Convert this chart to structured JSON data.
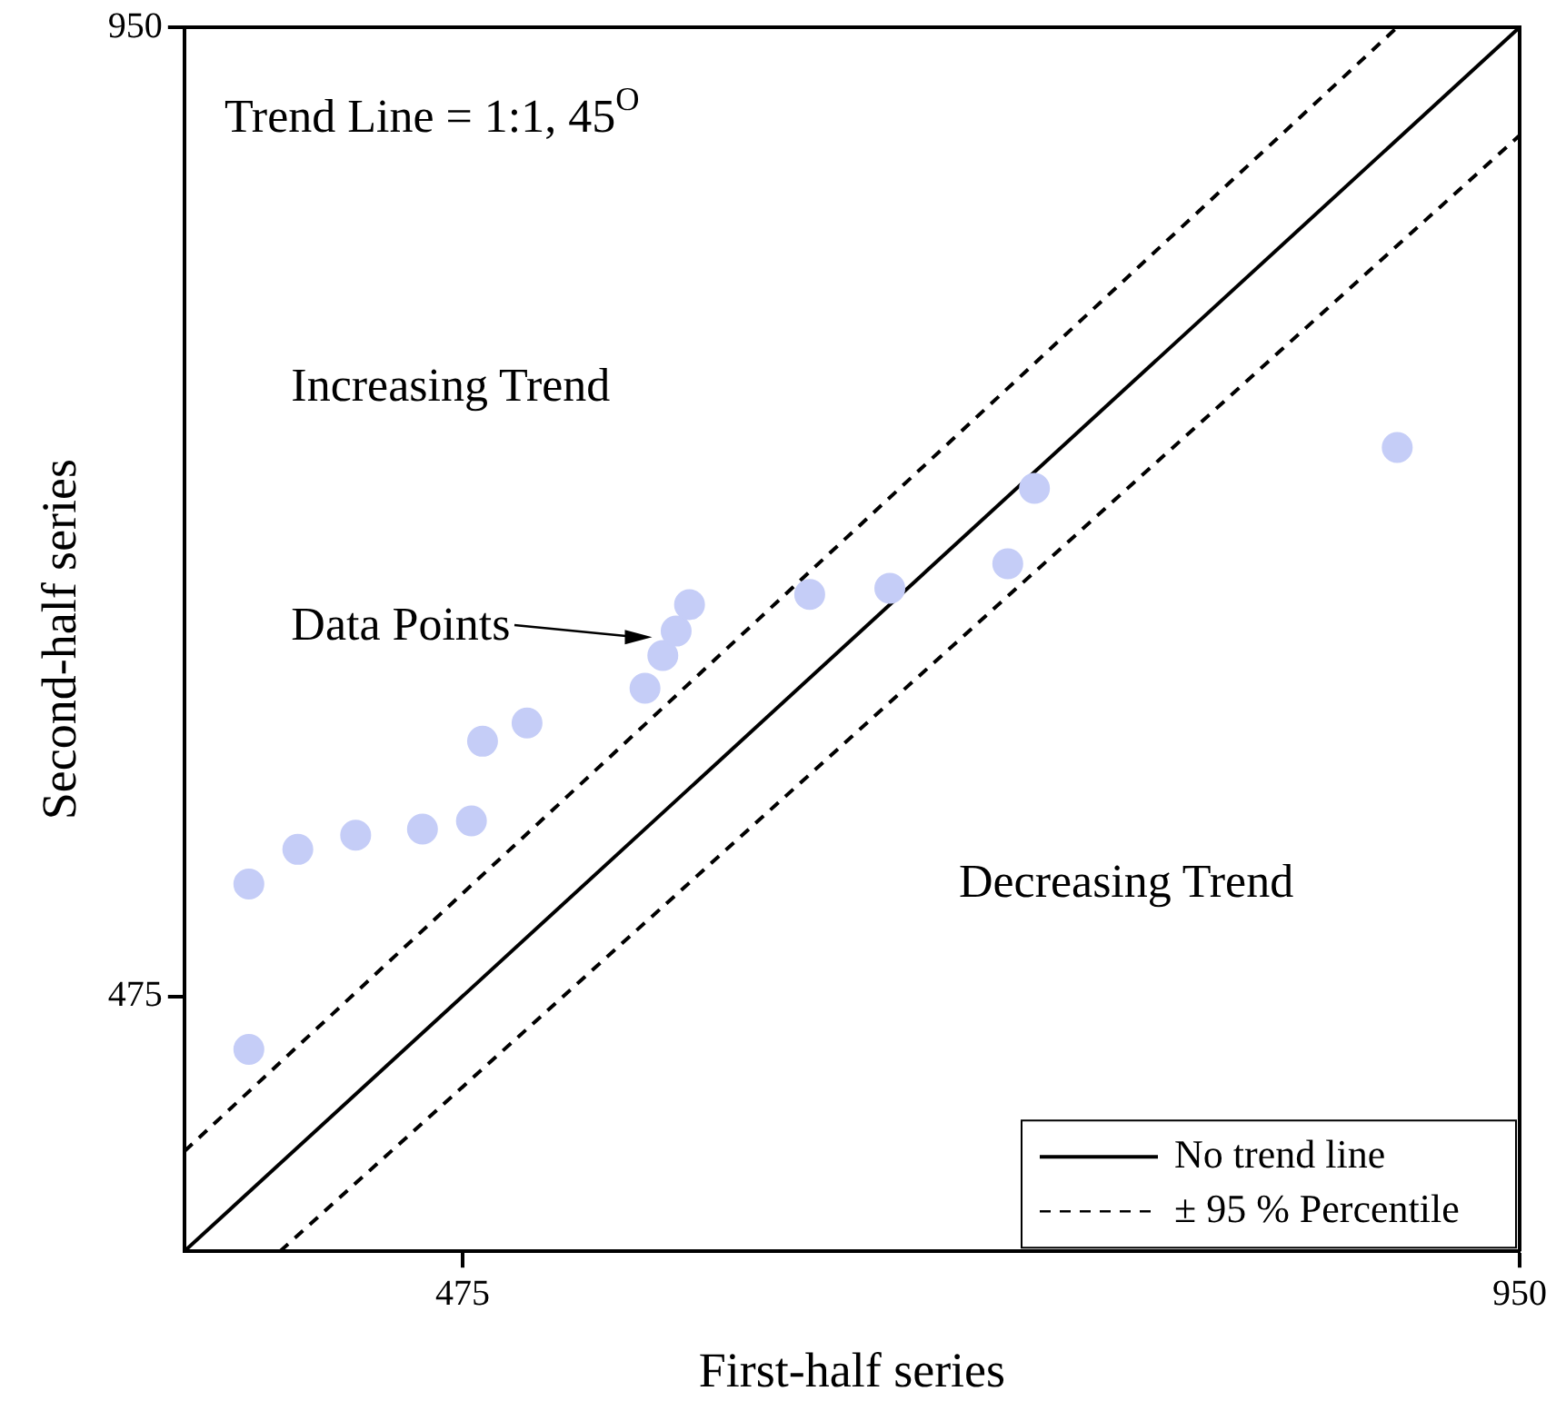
{
  "chart_data": {
    "type": "scatter",
    "xlabel": "First-half series",
    "ylabel": "Second-half series",
    "xlim": [
      350,
      950
    ],
    "ylim": [
      350,
      950
    ],
    "xticks": [
      475,
      950
    ],
    "yticks": [
      475,
      950
    ],
    "grid": false,
    "legend": "bottom right",
    "series": [
      {
        "marker": "circle",
        "color": "#c5cdf7",
        "x": [
          379,
          379,
          401,
          427,
          457,
          479,
          484,
          504,
          557,
          565,
          571,
          577,
          631,
          667,
          720,
          732,
          895
        ],
        "values": [
          449,
          530,
          547,
          554,
          557,
          561,
          600,
          609,
          626,
          642,
          654,
          667,
          672,
          675,
          687,
          724,
          744
        ]
      },
      {
        "type": "line",
        "marker": "none",
        "name": "No trend line",
        "color": "#000000",
        "line_style": "solid",
        "x": [
          350,
          950
        ],
        "values": [
          350,
          950
        ]
      },
      {
        "type": "line",
        "marker": "none",
        "name": "± 95 % Percentile",
        "color": "#000000",
        "line_style": "dashed",
        "x": [
          350,
          895
        ],
        "values": [
          399,
          950
        ]
      },
      {
        "type": "line",
        "marker": "none",
        "color": "#000000",
        "line_style": "dashed",
        "x": [
          393,
          950
        ],
        "values": [
          350,
          897
        ]
      }
    ],
    "annotations": [
      "Trend Line = 1:1, 45$^{O}$",
      "Increasing Trend",
      "Decreasing Trend",
      "Data Points"
    ]
  }
}
